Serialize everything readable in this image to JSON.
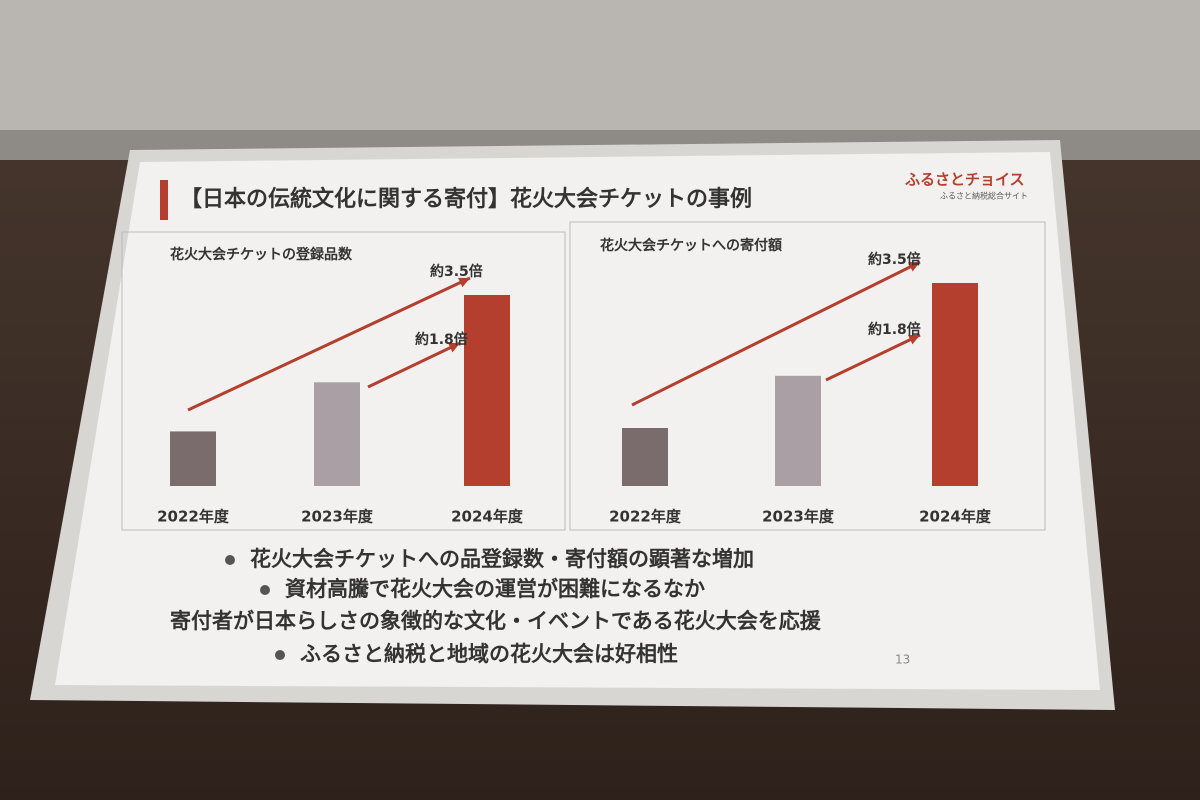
{
  "title": "【日本の伝統文化に関する寄付】花火大会チケットの事例",
  "logo": {
    "name": "ふるさとチョイス",
    "tagline": "ふるさと納税総合サイト"
  },
  "chart_data": [
    {
      "type": "bar",
      "title": "花火大会チケットの登録品数",
      "categories": [
        "2022年度",
        "2023年度",
        "2024年度"
      ],
      "values": [
        1,
        1.9,
        3.5
      ],
      "colors": [
        "#7a6b6c",
        "#a99fa4",
        "#b53f2f"
      ],
      "annotations": [
        "約3.5倍",
        "約1.8倍"
      ]
    },
    {
      "type": "bar",
      "title": "花火大会チケットへの寄付額",
      "categories": [
        "2022年度",
        "2023年度",
        "2024年度"
      ],
      "values": [
        1,
        1.9,
        3.5
      ],
      "colors": [
        "#7a6b6c",
        "#a99fa4",
        "#b53f2f"
      ],
      "annotations": [
        "約3.5倍",
        "約1.8倍"
      ]
    }
  ],
  "bullets": [
    "花火大会チケットへの品登録数・寄付額の顕著な増加",
    "資材高騰で花火大会の運営が困難になるなか",
    "寄付者が日本らしさの象徴的な文化・イベントである花火大会を応援",
    "ふるさと納税と地域の花火大会は好相性"
  ],
  "page_number": "13"
}
